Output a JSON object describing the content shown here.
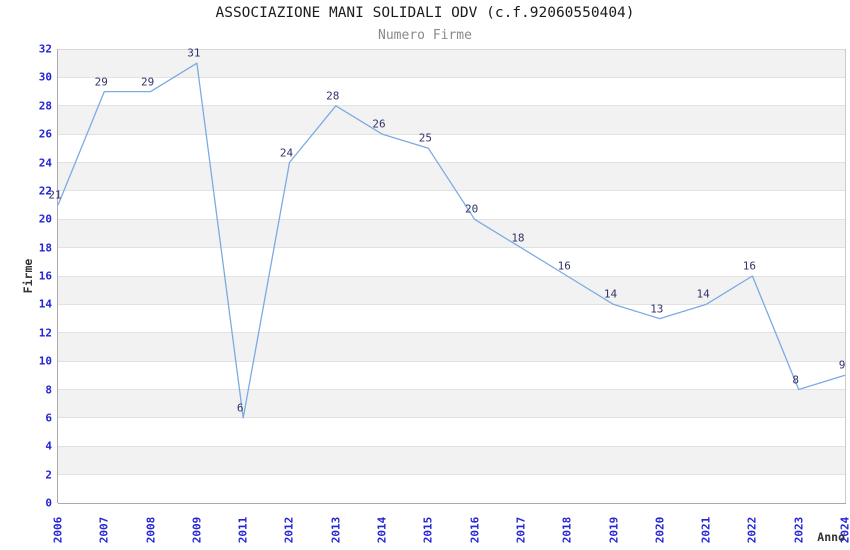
{
  "chart_data": {
    "type": "line",
    "title": "ASSOCIAZIONE MANI SOLIDALI ODV (c.f.92060550404)",
    "subtitle": "Numero Firme",
    "xlabel": "Anno",
    "ylabel": "Firme",
    "categories": [
      "2006",
      "2007",
      "2008",
      "2009",
      "2011",
      "2012",
      "2013",
      "2014",
      "2015",
      "2016",
      "2017",
      "2018",
      "2019",
      "2020",
      "2021",
      "2022",
      "2023",
      "2024"
    ],
    "values": [
      21,
      29,
      29,
      31,
      6,
      24,
      28,
      26,
      25,
      20,
      18,
      16,
      14,
      13,
      14,
      16,
      8,
      9
    ],
    "ylim": [
      0,
      32
    ],
    "ytick_step": 2,
    "grid": true,
    "banded_background": true,
    "legend": false,
    "data_labels_visible": true,
    "colors": {
      "line": "#7cabe2",
      "tick_label": "#2424d6",
      "data_label": "#33336b",
      "band": "#f2f2f2",
      "gridline": "#e2e2e2",
      "axis": "#aaaaaa",
      "plot_border": "#cccccc",
      "title": "#1c1c1c",
      "subtitle": "#8a8a8a",
      "axis_title": "#333333"
    }
  }
}
